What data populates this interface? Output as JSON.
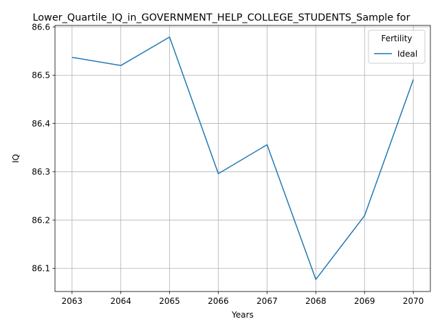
{
  "chart_data": {
    "type": "line",
    "title": "Lower_Quartile_IQ_in_GOVERNMENT_HELP_COLLEGE_STUDENTS_Sample for",
    "xlabel": "Years",
    "ylabel": "IQ",
    "x": [
      2063,
      2064,
      2065,
      2066,
      2067,
      2068,
      2069,
      2070
    ],
    "xticks": [
      "2063",
      "2064",
      "2065",
      "2066",
      "2067",
      "2068",
      "2069",
      "2070"
    ],
    "yticks": [
      "86.1",
      "86.2",
      "86.3",
      "86.4",
      "86.5",
      "86.6"
    ],
    "xlim": [
      2062.65,
      2070.35
    ],
    "ylim": [
      86.052,
      86.603
    ],
    "grid": true,
    "legend": {
      "title": "Fertility",
      "placement": "top-right"
    },
    "series": [
      {
        "name": "Ideal",
        "color": "#1f77b4",
        "values": [
          86.537,
          86.52,
          86.579,
          86.296,
          86.356,
          86.077,
          86.209,
          86.491
        ]
      }
    ]
  }
}
